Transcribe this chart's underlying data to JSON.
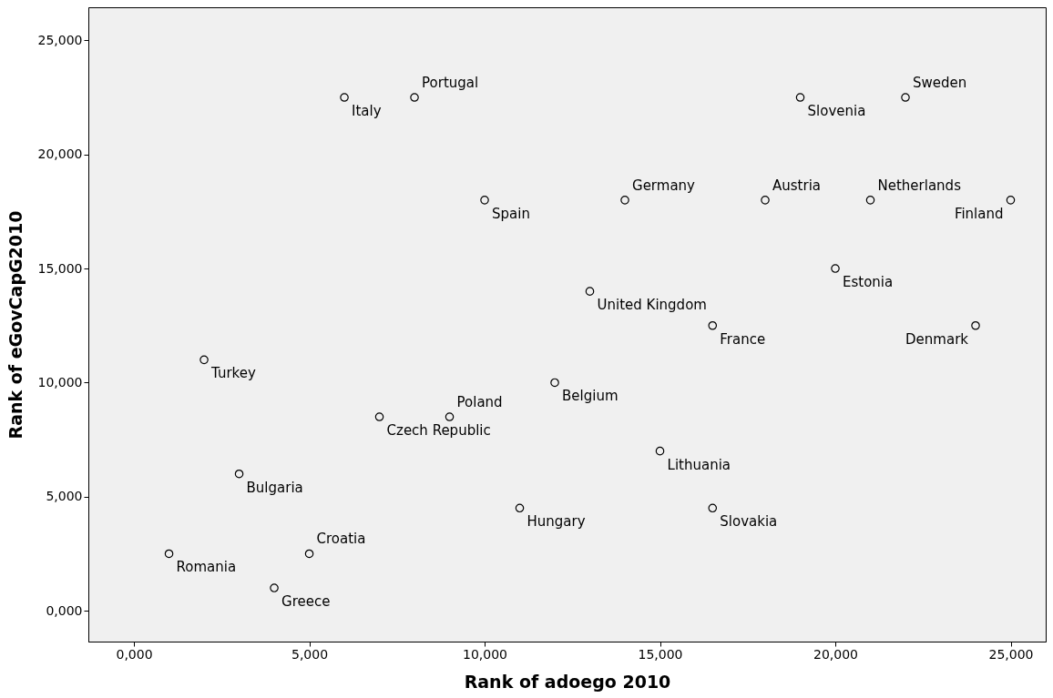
{
  "chart_data": {
    "type": "scatter",
    "xlabel": "Rank of adoego  2010",
    "ylabel": "Rank of eGovCapG2010",
    "x": [
      6,
      8,
      19,
      22,
      10,
      14,
      18,
      21,
      25,
      20,
      13,
      16.5,
      24,
      2,
      12,
      7,
      9,
      15,
      3,
      11,
      16.5,
      1,
      5,
      4
    ],
    "series": [
      {
        "color": "#000000",
        "values": [
          22.5,
          22.5,
          22.5,
          22.5,
          18,
          18,
          18,
          18,
          18,
          15,
          14,
          12.5,
          12.5,
          11,
          10,
          8.5,
          8.5,
          7,
          6,
          4.5,
          4.5,
          2.5,
          2.5,
          1
        ]
      }
    ],
    "marker": "circle",
    "grid": false,
    "xlim": [
      -1.3,
      26.0
    ],
    "ylim": [
      -1.35,
      26.45
    ],
    "xticks": [
      {
        "value": 0,
        "label": "0,000"
      },
      {
        "value": 5,
        "label": "5,000"
      },
      {
        "value": 10,
        "label": "10,000"
      },
      {
        "value": 15,
        "label": "15,000"
      },
      {
        "value": 20,
        "label": "20,000"
      },
      {
        "value": 25,
        "label": "25,000"
      }
    ],
    "yticks": [
      {
        "value": 0,
        "label": "0,000"
      },
      {
        "value": 5,
        "label": "5,000"
      },
      {
        "value": 10,
        "label": "10,000"
      },
      {
        "value": 15,
        "label": "15,000"
      },
      {
        "value": 20,
        "label": "20,000"
      },
      {
        "value": 25,
        "label": "25,000"
      }
    ],
    "annotations": [
      {
        "text": "Italy",
        "x": 6,
        "y": 22.5
      },
      {
        "text": "Portugal",
        "x": 8,
        "y": 22.5
      },
      {
        "text": "Slovenia",
        "x": 19,
        "y": 22.5
      },
      {
        "text": "Sweden",
        "x": 22,
        "y": 22.5
      },
      {
        "text": "Spain",
        "x": 10,
        "y": 18
      },
      {
        "text": "Germany",
        "x": 14,
        "y": 18
      },
      {
        "text": "Austria",
        "x": 18,
        "y": 18
      },
      {
        "text": "Netherlands",
        "x": 21,
        "y": 18
      },
      {
        "text": "Finland",
        "x": 25,
        "y": 18
      },
      {
        "text": "Estonia",
        "x": 20,
        "y": 15
      },
      {
        "text": "United Kingdom",
        "x": 13,
        "y": 14
      },
      {
        "text": "France",
        "x": 16.5,
        "y": 12.5
      },
      {
        "text": "Denmark",
        "x": 24,
        "y": 12.5
      },
      {
        "text": "Turkey",
        "x": 2,
        "y": 11
      },
      {
        "text": "Belgium",
        "x": 12,
        "y": 10
      },
      {
        "text": "Czech Republic",
        "x": 7,
        "y": 8.5
      },
      {
        "text": "Poland",
        "x": 9,
        "y": 8.5
      },
      {
        "text": "Lithuania",
        "x": 15,
        "y": 7
      },
      {
        "text": "Bulgaria",
        "x": 3,
        "y": 6
      },
      {
        "text": "Hungary",
        "x": 11,
        "y": 4.5
      },
      {
        "text": "Slovakia",
        "x": 16.5,
        "y": 4.5
      },
      {
        "text": "Romania",
        "x": 1,
        "y": 2.5
      },
      {
        "text": "Croatia",
        "x": 5,
        "y": 2.5
      },
      {
        "text": "Greece",
        "x": 4,
        "y": 1
      }
    ]
  }
}
